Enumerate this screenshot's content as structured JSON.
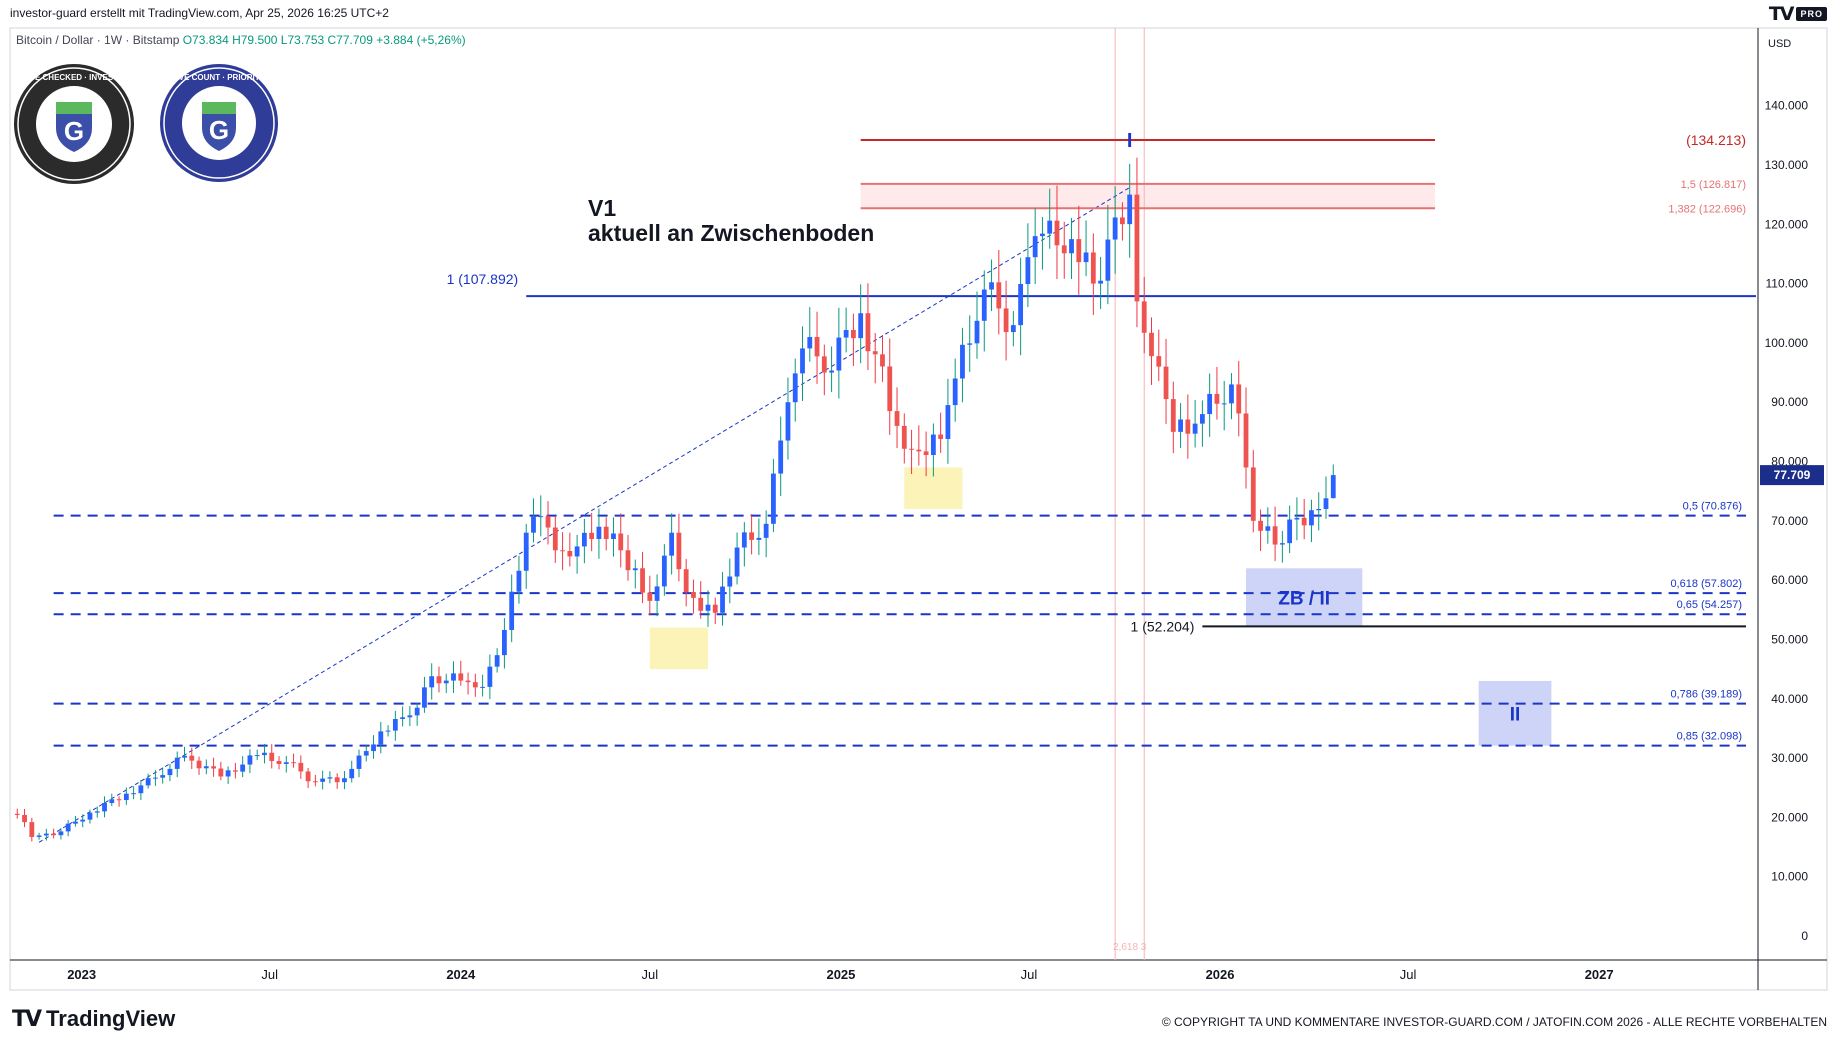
{
  "header": {
    "attribution": "investor-guard erstellt mit TradingView.com, Apr 25, 2026 16:25 UTC+2",
    "symbol_description": "Bitcoin / Dollar · 1W · Bitstamp",
    "ohlc": "O73.834  H79.500  L73.753  C77.709  +3.884 (+5,26%)",
    "pro_badge": "PRO"
  },
  "badges": {
    "compliance": "COMPLIANCE CHECKED · INVESTOR GUARD",
    "wave": "WAVE COUNT · PRIORITY 1",
    "logo_letter": "G"
  },
  "annotation": {
    "line1": "V1",
    "line2": "aktuell an Zwischenboden"
  },
  "footer": {
    "brand": "TradingView",
    "copyright": "© COPYRIGHT TA UND KOMMENTARE INVESTOR-GUARD.COM / JATOFIN.COM 2026 - ALLE RECHTE VORBEHALTEN"
  },
  "colors": {
    "up": "#089981",
    "down": "#f23645",
    "body_up": "#2962ff",
    "body_down": "#ef5350",
    "blue_line": "#1a35c8",
    "red_line": "#c62828",
    "zone_yellow": "#fbf2b0",
    "zone_blue": "#c9cff6",
    "zone_red": "#fde1e1",
    "price_label": "#1c2e8c"
  },
  "chart_data": {
    "type": "candlestick",
    "symbol": "Bitcoin / Dollar",
    "interval": "1W",
    "exchange": "Bitstamp",
    "currency": "USD",
    "ylim": [
      0,
      145000
    ],
    "y_ticks": [
      0,
      10000,
      20000,
      30000,
      40000,
      50000,
      60000,
      70000,
      80000,
      90000,
      100000,
      110000,
      120000,
      130000,
      140000
    ],
    "y_tick_labels": [
      "0",
      "10.000",
      "20.000",
      "30.000",
      "40.000",
      "50.000",
      "60.000",
      "70.000",
      "80.000",
      "90.000",
      "100.000",
      "110.000",
      "120.000",
      "130.000",
      "140.000"
    ],
    "x_range": [
      "2022-10-24",
      "2027-06-01"
    ],
    "x_ticks": [
      {
        "date": "2023-01-01",
        "label": "2023"
      },
      {
        "date": "2023-07-01",
        "label": "Jul"
      },
      {
        "date": "2024-01-01",
        "label": "2024"
      },
      {
        "date": "2024-07-01",
        "label": "Jul"
      },
      {
        "date": "2025-01-01",
        "label": "2025"
      },
      {
        "date": "2025-07-01",
        "label": "Jul"
      },
      {
        "date": "2026-01-01",
        "label": "2026"
      },
      {
        "date": "2026-07-01",
        "label": "Jul"
      },
      {
        "date": "2027-01-01",
        "label": "2027"
      }
    ],
    "last_price": {
      "value": 77709,
      "label": "77.709"
    },
    "ohlc_last": {
      "open": 73834,
      "high": 79500,
      "low": 73753,
      "close": 77709,
      "change": "+3.884 (+5,26%)"
    },
    "weekly_closes": [
      {
        "date": "2022-10-24",
        "close": 20600
      },
      {
        "date": "2022-11-07",
        "close": 19200
      },
      {
        "date": "2022-11-14",
        "close": 16700
      },
      {
        "date": "2022-12-05",
        "close": 17000
      },
      {
        "date": "2023-01-09",
        "close": 20800
      },
      {
        "date": "2023-02-13",
        "close": 24000
      },
      {
        "date": "2023-03-13",
        "close": 26700
      },
      {
        "date": "2023-04-10",
        "close": 30400
      },
      {
        "date": "2023-05-15",
        "close": 26900
      },
      {
        "date": "2023-06-19",
        "close": 30500
      },
      {
        "date": "2023-07-17",
        "close": 29300
      },
      {
        "date": "2023-08-14",
        "close": 26000
      },
      {
        "date": "2023-09-11",
        "close": 26600
      },
      {
        "date": "2023-10-16",
        "close": 34500
      },
      {
        "date": "2023-11-13",
        "close": 37200
      },
      {
        "date": "2023-12-04",
        "close": 43800
      },
      {
        "date": "2024-01-08",
        "close": 42800
      },
      {
        "date": "2024-01-22",
        "close": 42000
      },
      {
        "date": "2024-02-12",
        "close": 51600
      },
      {
        "date": "2024-03-04",
        "close": 68000
      },
      {
        "date": "2024-03-11",
        "close": 70700
      },
      {
        "date": "2024-04-15",
        "close": 64000
      },
      {
        "date": "2024-05-13",
        "close": 69000
      },
      {
        "date": "2024-06-17",
        "close": 62000
      },
      {
        "date": "2024-07-01",
        "close": 56500
      },
      {
        "date": "2024-07-22",
        "close": 68000
      },
      {
        "date": "2024-08-05",
        "close": 58000
      },
      {
        "date": "2024-09-02",
        "close": 54500
      },
      {
        "date": "2024-09-23",
        "close": 65500
      },
      {
        "date": "2024-10-21",
        "close": 69500
      },
      {
        "date": "2024-11-11",
        "close": 90000
      },
      {
        "date": "2024-12-02",
        "close": 101000
      },
      {
        "date": "2024-12-16",
        "close": 95000
      },
      {
        "date": "2025-01-20",
        "close": 105000
      },
      {
        "date": "2025-02-24",
        "close": 86000
      },
      {
        "date": "2025-03-10",
        "close": 82000
      },
      {
        "date": "2025-04-07",
        "close": 83800
      },
      {
        "date": "2025-04-21",
        "close": 94000
      },
      {
        "date": "2025-05-19",
        "close": 109000
      },
      {
        "date": "2025-06-16",
        "close": 103000
      },
      {
        "date": "2025-07-07",
        "close": 118000
      },
      {
        "date": "2025-08-11",
        "close": 117500
      },
      {
        "date": "2025-09-01",
        "close": 110000
      },
      {
        "date": "2025-10-06",
        "close": 125000
      },
      {
        "date": "2025-10-13",
        "close": 107000
      },
      {
        "date": "2025-11-03",
        "close": 96000
      },
      {
        "date": "2025-11-17",
        "close": 85000
      },
      {
        "date": "2025-12-15",
        "close": 88000
      },
      {
        "date": "2026-01-12",
        "close": 93000
      },
      {
        "date": "2026-01-26",
        "close": 79000
      },
      {
        "date": "2026-02-02",
        "close": 70000
      },
      {
        "date": "2026-02-23",
        "close": 66000
      },
      {
        "date": "2026-03-16",
        "close": 70500
      },
      {
        "date": "2026-04-06",
        "close": 72000
      },
      {
        "date": "2026-04-13",
        "close": 73800
      },
      {
        "date": "2026-04-20",
        "close": 77709
      }
    ],
    "horizontal_levels": [
      {
        "value": 134213,
        "label": "(134.213)",
        "color": "#c62828",
        "style": "solid",
        "from": "2025-01-20"
      },
      {
        "value": 126817,
        "label": "1,5 (126.817)",
        "color": "#e57373",
        "style": "solid",
        "from": "2025-01-20"
      },
      {
        "value": 122696,
        "label": "1,382 (122.696)",
        "color": "#e57373",
        "style": "solid",
        "from": "2025-01-20"
      },
      {
        "value": 107892,
        "label": "1 (107.892)",
        "color": "#1a35c8",
        "style": "solid",
        "from": "2024-03-04"
      },
      {
        "value": 70876,
        "label": "0,5 (70.876)",
        "color": "#1a35c8",
        "style": "dashed",
        "from": "2022-12-05"
      },
      {
        "value": 57802,
        "label": "0,618 (57.802)",
        "color": "#1a35c8",
        "style": "dashed",
        "from": "2022-12-05"
      },
      {
        "value": 54257,
        "label": "0,65 (54.257)",
        "color": "#1a35c8",
        "style": "dashed",
        "from": "2022-12-05"
      },
      {
        "value": 52204,
        "label": "1 (52.204)",
        "color": "#131722",
        "style": "solid",
        "from": "2025-12-15"
      },
      {
        "value": 39189,
        "label": "0,786 (39.189)",
        "color": "#1a35c8",
        "style": "dashed",
        "from": "2022-12-05"
      },
      {
        "value": 32098,
        "label": "0,85 (32.098)",
        "color": "#1a35c8",
        "style": "dashed",
        "from": "2022-12-05"
      }
    ],
    "zones": [
      {
        "kind": "yellow",
        "x0": "2024-07-01",
        "x1": "2024-08-26",
        "y0": 45000,
        "y1": 52000
      },
      {
        "kind": "yellow",
        "x0": "2025-03-03",
        "x1": "2025-04-28",
        "y0": 72000,
        "y1": 79000
      },
      {
        "kind": "blue",
        "x0": "2026-01-26",
        "x1": "2026-05-18",
        "y0": 52204,
        "y1": 62000,
        "label": "ZB / II"
      },
      {
        "kind": "blue",
        "x0": "2026-09-07",
        "x1": "2026-11-16",
        "y0": 32098,
        "y1": 43000,
        "label": "II"
      },
      {
        "kind": "red",
        "x0": "2025-01-20",
        "x1": "2026-07-27",
        "y0": 122696,
        "y1": 126817
      }
    ],
    "wave_labels": [
      {
        "text": "I",
        "date": "2025-10-06",
        "value": 133000
      }
    ],
    "vertical_lines": [
      {
        "date": "2025-09-22"
      },
      {
        "date": "2025-10-20"
      }
    ],
    "vertical_label": "2,618 3",
    "trendline": {
      "from_date": "2022-11-21",
      "from_value": 15800,
      "to_date": "2025-10-06",
      "to_value": 126200
    }
  }
}
